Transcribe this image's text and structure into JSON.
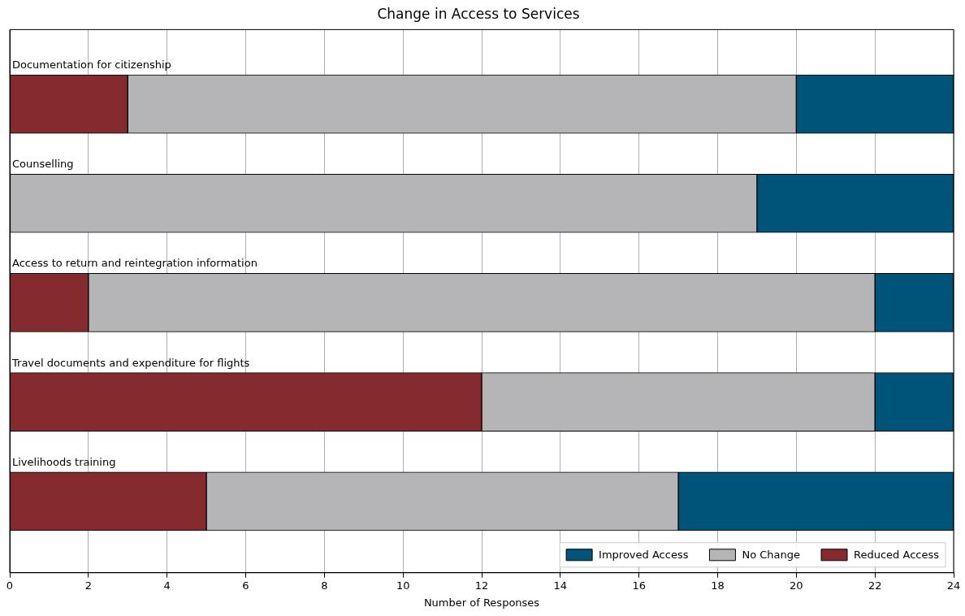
{
  "chart_data": {
    "type": "bar",
    "title": "Change in Access to Services",
    "xlabel": "Number of Responses",
    "orientation": "horizontal",
    "stacked": true,
    "categories": [
      "Documentation for citizenship",
      "Counselling",
      "Access to return and reintegration information",
      "Travel documents and expenditure for flights",
      "Livelihoods training"
    ],
    "series": [
      {
        "name": "Reduced Access",
        "color": "#852b30",
        "values": [
          3,
          0,
          2,
          12,
          5
        ]
      },
      {
        "name": "No Change",
        "color": "#b5b5b7",
        "values": [
          17,
          19,
          20,
          10,
          12
        ]
      },
      {
        "name": "Improved Access",
        "color": "#005479",
        "values": [
          4,
          5,
          2,
          2,
          7
        ]
      }
    ],
    "xlim": [
      0,
      24
    ],
    "xticks": [
      0,
      2,
      4,
      6,
      8,
      10,
      12,
      14,
      16,
      18,
      20,
      22,
      24
    ],
    "grid": "x",
    "legend": "bottom right",
    "tick_labels": "x"
  }
}
